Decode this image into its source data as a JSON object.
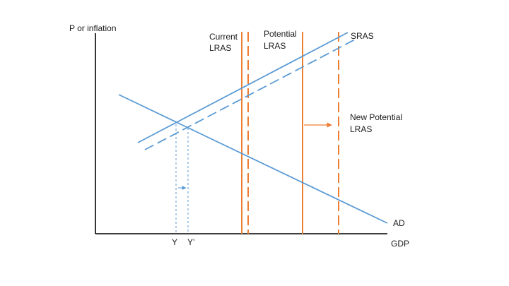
{
  "diagram": {
    "y_axis_label": "P or inflation",
    "x_axis_label": "GDP",
    "current_lras_label": [
      "Current",
      "LRAS"
    ],
    "potential_lras_label": [
      "Potential",
      "LRAS"
    ],
    "new_potential_lras_label": [
      "New Potential",
      "LRAS"
    ],
    "sras_label": "SRAS",
    "ad_label": "AD",
    "y_label": "Y",
    "y_prime_label": "Y’"
  },
  "colors": {
    "axis": "#000000",
    "curve_blue": "#5b9bd5",
    "lras_orange": "#ed7d31",
    "text": "#1a1a1a"
  }
}
